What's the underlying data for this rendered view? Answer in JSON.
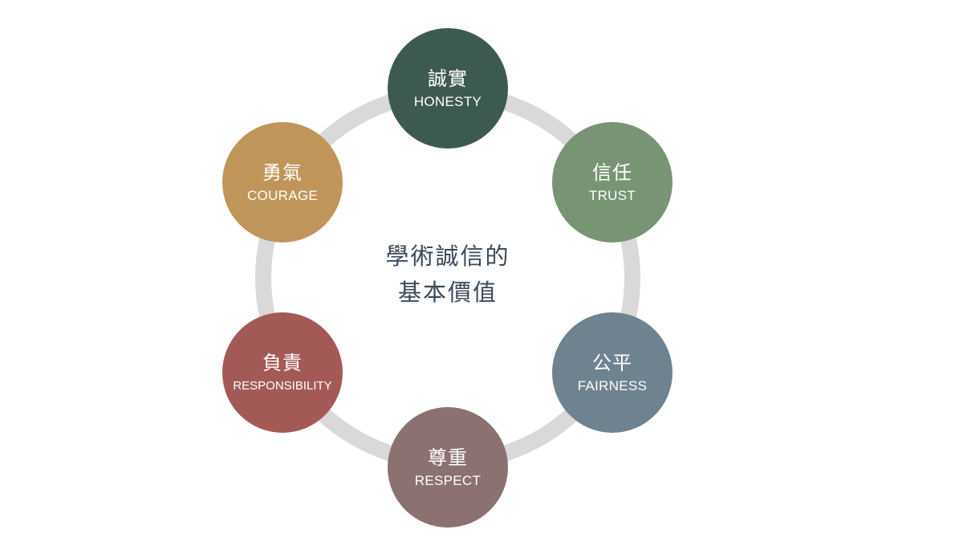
{
  "center": {
    "line1": "學術誠信的",
    "line2": "基本價值"
  },
  "values": [
    {
      "zh": "誠實",
      "en": "HONESTY",
      "color": "#3d5a52"
    },
    {
      "zh": "信任",
      "en": "TRUST",
      "color": "#789474"
    },
    {
      "zh": "公平",
      "en": "FAIRNESS",
      "color": "#6f8290"
    },
    {
      "zh": "尊重",
      "en": "RESPECT",
      "color": "#8c7171"
    },
    {
      "zh": "負責",
      "en": "RESPONSIBILITY",
      "color": "#a35a57"
    },
    {
      "zh": "勇氣",
      "en": "COURAGE",
      "color": "#c0955a"
    }
  ],
  "colors": {
    "ring": "#d9d9d9",
    "center_text": "#3c4a5a"
  }
}
